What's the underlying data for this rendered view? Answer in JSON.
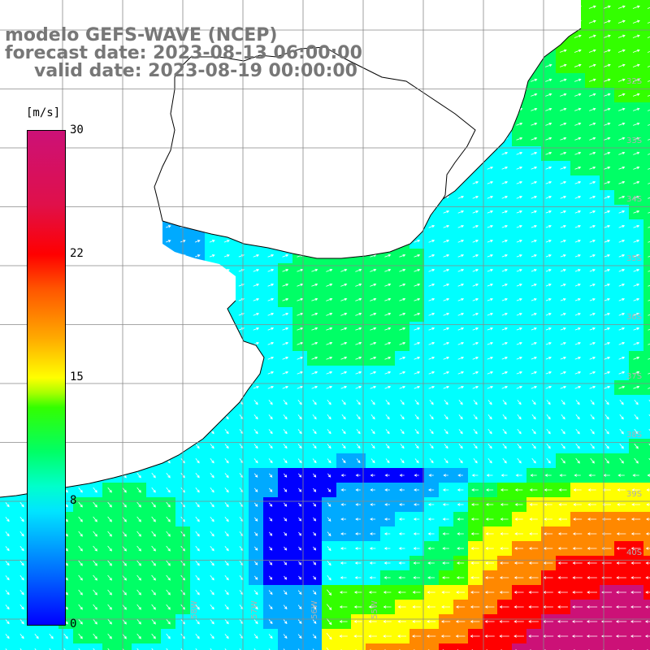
{
  "title": {
    "line1": "modelo GEFS-WAVE (NCEP)",
    "line2": "forecast date: 2023-08-13 06:00:00",
    "line3": "valid date: 2023-08-19 00:00:00"
  },
  "colorbar": {
    "unit": "[m/s]",
    "ticks": [
      "30",
      "22",
      "15",
      "8",
      "0"
    ],
    "min": 0,
    "max": 30,
    "colors": [
      "#0000ff",
      "#00aaff",
      "#00ffff",
      "#00ff66",
      "#33ff00",
      "#ffff00",
      "#ff8800",
      "#ff0000",
      "#cc1177"
    ]
  },
  "lat_labels": [
    "32S",
    "33S",
    "34S",
    "35S",
    "36S",
    "37S",
    "38S",
    "39S",
    "40S"
  ],
  "lon_labels": [
    "58W",
    "57W",
    "56W",
    "55W"
  ],
  "land_color": "#ffffff",
  "coast_color": "#000000",
  "grid_color": "#888888"
}
